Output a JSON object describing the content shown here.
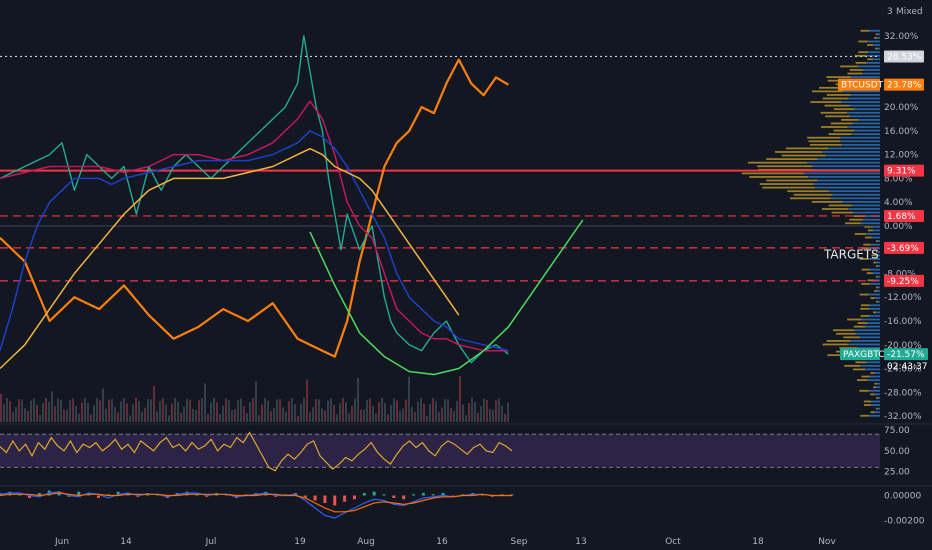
{
  "header": {
    "scale_mode": "Mixed"
  },
  "chart_data": [
    {
      "type": "line",
      "panel": "main",
      "y_unit": "%",
      "x_ticks": [
        "Jun",
        "14",
        "Jul",
        "19",
        "Aug",
        "16",
        "Sep",
        "13",
        "Oct",
        "18",
        "Nov"
      ],
      "y_ticks": [
        "32.00%",
        "28.00%",
        "24.00%",
        "20.00%",
        "16.00%",
        "12.00%",
        "8.00%",
        "4.00%",
        "0.00%",
        "-4.00%",
        "-8.00%",
        "-12.00%",
        "-16.00%",
        "-20.00%",
        "-24.00%",
        "-28.00%",
        "-32.00%"
      ],
      "ylim": [
        -33,
        35
      ],
      "series": [
        {
          "name": "BTCUSDT",
          "color": "#ff7f0e",
          "last_value_label": "23.78%",
          "points": [
            [
              0,
              -2
            ],
            [
              4,
              -6
            ],
            [
              8,
              -16
            ],
            [
              12,
              -12
            ],
            [
              16,
              -14
            ],
            [
              20,
              -10
            ],
            [
              24,
              -15
            ],
            [
              28,
              -19
            ],
            [
              32,
              -17
            ],
            [
              36,
              -14
            ],
            [
              40,
              -16
            ],
            [
              44,
              -13
            ],
            [
              48,
              -19
            ],
            [
              52,
              -21
            ],
            [
              54,
              -22
            ],
            [
              56,
              -16
            ],
            [
              58,
              -6
            ],
            [
              60,
              2
            ],
            [
              62,
              10
            ],
            [
              64,
              14
            ],
            [
              66,
              16
            ],
            [
              68,
              20
            ],
            [
              70,
              19
            ],
            [
              72,
              24
            ],
            [
              74,
              28
            ],
            [
              76,
              24
            ],
            [
              78,
              22
            ],
            [
              80,
              25
            ],
            [
              82,
              23.78
            ]
          ]
        },
        {
          "name": "PAXGBTC",
          "color": "#22ab94",
          "last_value_label": "-21.57%",
          "points": [
            [
              0,
              8
            ],
            [
              4,
              10
            ],
            [
              8,
              12
            ],
            [
              10,
              14
            ],
            [
              12,
              6
            ],
            [
              14,
              12
            ],
            [
              16,
              10
            ],
            [
              18,
              8
            ],
            [
              20,
              10
            ],
            [
              22,
              2
            ],
            [
              24,
              10
            ],
            [
              26,
              6
            ],
            [
              28,
              10
            ],
            [
              30,
              12
            ],
            [
              32,
              10
            ],
            [
              34,
              8
            ],
            [
              36,
              10
            ],
            [
              38,
              12
            ],
            [
              40,
              14
            ],
            [
              42,
              16
            ],
            [
              44,
              18
            ],
            [
              46,
              20
            ],
            [
              48,
              24
            ],
            [
              49,
              32
            ],
            [
              50,
              26
            ],
            [
              51,
              20
            ],
            [
              52,
              16
            ],
            [
              53,
              8
            ],
            [
              54,
              2
            ],
            [
              55,
              -4
            ],
            [
              56,
              2
            ],
            [
              58,
              -4
            ],
            [
              60,
              0
            ],
            [
              62,
              -12
            ],
            [
              63,
              -16
            ],
            [
              64,
              -18
            ],
            [
              66,
              -20
            ],
            [
              68,
              -21
            ],
            [
              70,
              -18
            ],
            [
              72,
              -16
            ],
            [
              74,
              -20
            ],
            [
              76,
              -23
            ],
            [
              78,
              -21
            ],
            [
              80,
              -20
            ],
            [
              82,
              -21.57
            ]
          ]
        },
        {
          "name": "",
          "color": "#c2185b",
          "points": [
            [
              0,
              8
            ],
            [
              4,
              9
            ],
            [
              8,
              10
            ],
            [
              12,
              10
            ],
            [
              16,
              10
            ],
            [
              20,
              9
            ],
            [
              24,
              10
            ],
            [
              28,
              12
            ],
            [
              32,
              12
            ],
            [
              36,
              11
            ],
            [
              40,
              12
            ],
            [
              44,
              14
            ],
            [
              48,
              18
            ],
            [
              50,
              21
            ],
            [
              52,
              18
            ],
            [
              54,
              12
            ],
            [
              56,
              4
            ],
            [
              58,
              0
            ],
            [
              60,
              -2
            ],
            [
              62,
              -8
            ],
            [
              64,
              -14
            ],
            [
              66,
              -16
            ],
            [
              68,
              -18
            ],
            [
              70,
              -19
            ],
            [
              72,
              -19
            ],
            [
              74,
              -20
            ],
            [
              76,
              -20.5
            ],
            [
              78,
              -21
            ],
            [
              80,
              -21
            ],
            [
              82,
              -21
            ]
          ]
        },
        {
          "name": "",
          "color": "#1e3fc7",
          "points": [
            [
              0,
              -21
            ],
            [
              2,
              -14
            ],
            [
              4,
              -6
            ],
            [
              6,
              0
            ],
            [
              8,
              4
            ],
            [
              10,
              6
            ],
            [
              12,
              8
            ],
            [
              14,
              8
            ],
            [
              16,
              8
            ],
            [
              18,
              7
            ],
            [
              20,
              8
            ],
            [
              24,
              9
            ],
            [
              28,
              10
            ],
            [
              32,
              11
            ],
            [
              36,
              11
            ],
            [
              40,
              11
            ],
            [
              44,
              12
            ],
            [
              48,
              14
            ],
            [
              50,
              16
            ],
            [
              52,
              15
            ],
            [
              54,
              13
            ],
            [
              56,
              10
            ],
            [
              58,
              6
            ],
            [
              60,
              2
            ],
            [
              62,
              -2
            ],
            [
              64,
              -8
            ],
            [
              66,
              -12
            ],
            [
              68,
              -14
            ],
            [
              70,
              -16
            ],
            [
              72,
              -17
            ],
            [
              74,
              -19
            ],
            [
              76,
              -19.5
            ],
            [
              78,
              -20
            ],
            [
              80,
              -20.5
            ],
            [
              82,
              -21
            ]
          ]
        },
        {
          "name": "",
          "color": "#f0b43c",
          "points": [
            [
              0,
              -24
            ],
            [
              4,
              -20
            ],
            [
              8,
              -14
            ],
            [
              12,
              -8
            ],
            [
              16,
              -3
            ],
            [
              20,
              2
            ],
            [
              24,
              6
            ],
            [
              28,
              8
            ],
            [
              32,
              8
            ],
            [
              36,
              8
            ],
            [
              40,
              9
            ],
            [
              44,
              10
            ],
            [
              48,
              12
            ],
            [
              50,
              13
            ],
            [
              52,
              12
            ],
            [
              54,
              10
            ],
            [
              56,
              9
            ],
            [
              58,
              8
            ],
            [
              60,
              6
            ],
            [
              62,
              3
            ],
            [
              64,
              0
            ],
            [
              66,
              -3
            ],
            [
              68,
              -6
            ],
            [
              70,
              -9
            ],
            [
              72,
              -12
            ],
            [
              74,
              -15
            ]
          ]
        },
        {
          "name": "",
          "color": "#4cd964",
          "dashed": false,
          "points": [
            [
              50,
              -1
            ],
            [
              54,
              -10
            ],
            [
              58,
              -18
            ],
            [
              62,
              -22
            ],
            [
              66,
              -24.5
            ],
            [
              70,
              -25
            ],
            [
              74,
              -24
            ],
            [
              78,
              -21
            ],
            [
              82,
              -17
            ],
            [
              86,
              -11
            ],
            [
              90,
              -5
            ],
            [
              94,
              1
            ]
          ]
        }
      ],
      "horizontal_levels": [
        {
          "value": 9.31,
          "label": "9.31%",
          "color": "#f23645",
          "style": "solid"
        },
        {
          "value": 1.68,
          "label": "1.68%",
          "color": "#f23645",
          "style": "dashed"
        },
        {
          "value": -3.69,
          "label": "-3.69%",
          "color": "#f23645",
          "style": "dashed"
        },
        {
          "value": -9.25,
          "label": "-9.25%",
          "color": "#f23645",
          "style": "dashed"
        },
        {
          "value": 28.53,
          "label": "28.53%",
          "color": "#d1d4dc",
          "style": "dotted"
        }
      ],
      "annotations": [
        {
          "text": "TARGETS",
          "x_day": 120,
          "y": -5.5
        }
      ],
      "hidden_badge_text": "02:43:37"
    },
    {
      "type": "line",
      "panel": "rsi",
      "color": "#e0a528",
      "band_color": "#5b3b8c",
      "y_ticks": [
        "75.00",
        "50.00",
        "25.00"
      ],
      "band": [
        30,
        70
      ],
      "ylim": [
        10,
        80
      ],
      "values": [
        55,
        48,
        62,
        50,
        58,
        44,
        60,
        52,
        66,
        56,
        50,
        62,
        48,
        58,
        54,
        60,
        50,
        56,
        64,
        52,
        58,
        48,
        62,
        56,
        50,
        60,
        66,
        54,
        58,
        50,
        60,
        52,
        56,
        64,
        50,
        58,
        54,
        66,
        60,
        72,
        58,
        44,
        30,
        26,
        38,
        46,
        40,
        48,
        58,
        62,
        44,
        36,
        28,
        34,
        42,
        38,
        46,
        52,
        60,
        48,
        40,
        34,
        46,
        56,
        62,
        54,
        60,
        50,
        44,
        56,
        62,
        58,
        52,
        46,
        54,
        58,
        50,
        48,
        60,
        56,
        50
      ]
    },
    {
      "type": "bar",
      "panel": "macd",
      "y_ticks": [
        "0.00000",
        "-0.00200"
      ],
      "ylim": [
        -0.0026,
        0.0006
      ],
      "histogram": [
        0.0002,
        0.0003,
        0.0001,
        -0.0002,
        0.0002,
        0.0004,
        0.0002,
        -0.0001,
        0.0003,
        0.0002,
        -0.0002,
        0.0001,
        0.0003,
        0.0002,
        -0.0001,
        0.0002,
        0.0001,
        -0.0002,
        0.0002,
        0.0003,
        0.0001,
        -0.0001,
        0.0002,
        0.0001,
        -0.0002,
        0.0001,
        0.0002,
        0.0003,
        -0.0001,
        0.0001,
        0.0002,
        -0.0002,
        -0.0004,
        -0.0006,
        -0.0008,
        -0.0005,
        -0.0003,
        0.0002,
        0.0003,
        0.0001,
        -0.0002,
        -0.0003,
        0.0001,
        0.0002,
        0.0001,
        0.0002,
        -0.0001,
        0.0001,
        0.0002,
        0.0001,
        -0.0001,
        0.0001,
        0.0001
      ],
      "macd_line": [
        0.0001,
        0.0002,
        0.0002,
        0.0,
        -0.0001,
        0.0002,
        0.0003,
        0.0,
        -0.0001,
        0.0002,
        0.0001,
        -0.0002,
        0.0001,
        0.0002,
        0.0,
        0.0001,
        0.0001,
        -0.0001,
        0.0001,
        0.0002,
        0.0002,
        0.0,
        0.0001,
        0.0001,
        -0.0001,
        0.0,
        0.0001,
        0.0002,
        0.0,
        0.0,
        0.0001,
        -0.0004,
        -0.001,
        -0.0016,
        -0.0018,
        -0.0014,
        -0.001,
        -0.0006,
        -0.0003,
        -0.0004,
        -0.0007,
        -0.0008,
        -0.0005,
        -0.0002,
        -0.0001,
        0.0,
        -0.0001,
        0.0,
        0.0001,
        0.0001,
        0.0,
        0.0,
        0.0
      ],
      "signal_line": [
        0.0,
        0.0001,
        0.0001,
        0.0001,
        0.0,
        0.0001,
        0.0002,
        0.0001,
        0.0,
        0.0001,
        0.0001,
        0.0,
        0.0,
        0.0001,
        0.0001,
        0.0001,
        0.0001,
        0.0,
        0.0,
        0.0001,
        0.0001,
        0.0001,
        0.0001,
        0.0001,
        0.0,
        0.0,
        0.0,
        0.0001,
        0.0001,
        0.0,
        0.0,
        -0.0002,
        -0.0006,
        -0.001,
        -0.0013,
        -0.0013,
        -0.0012,
        -0.0009,
        -0.0006,
        -0.0005,
        -0.0006,
        -0.0007,
        -0.0006,
        -0.0004,
        -0.0002,
        -0.0001,
        -0.0001,
        0.0,
        0.0,
        0.0001,
        0.0,
        0.0,
        0.0
      ]
    }
  ]
}
